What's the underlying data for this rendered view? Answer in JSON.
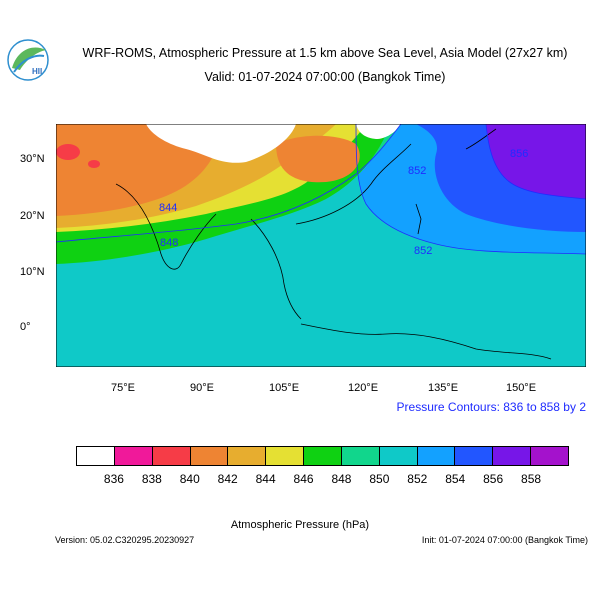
{
  "header": {
    "title_line1": "WRF-ROMS, Atmospheric Pressure at 1.5 km above Sea Level, Asia Model (27x27 km)",
    "title_line2": "Valid: 01-07-2024 07:00:00 (Bangkok Time)",
    "logo_text": "HII"
  },
  "map": {
    "lat_ticks": [
      "30°N",
      "20°N",
      "10°N",
      "0°"
    ],
    "lon_ticks": [
      "75°E",
      "90°E",
      "105°E",
      "120°E",
      "135°E",
      "150°E"
    ],
    "contour_labels": [
      "856",
      "852",
      "844",
      "848",
      "852"
    ],
    "contour_note": "Pressure Contours: 836 to 858 by 2"
  },
  "colorbar": {
    "labels": [
      "836",
      "838",
      "840",
      "842",
      "844",
      "846",
      "848",
      "850",
      "852",
      "854",
      "856",
      "858"
    ],
    "colors": [
      "#ffffff",
      "#f0199a",
      "#f63c47",
      "#ee8433",
      "#e7ad2f",
      "#e5e033",
      "#0fd112",
      "#11d68c",
      "#0fc9c8",
      "#13a1ff",
      "#2256ff",
      "#7716e8",
      "#a412cc"
    ],
    "title": "Atmospheric Pressure (hPa)"
  },
  "footer": {
    "version": "Version: 05.02.C320295.20230927",
    "init": "Init: 01-07-2024 07:00:00 (Bangkok Time)"
  }
}
